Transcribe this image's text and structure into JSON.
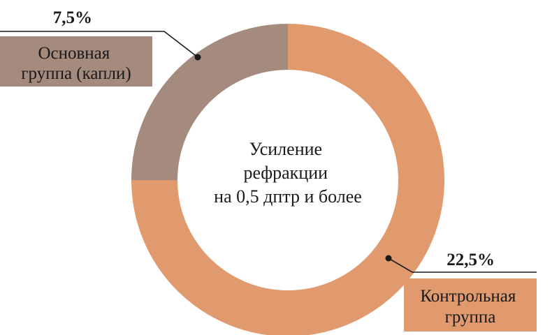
{
  "chart_data": {
    "type": "pie",
    "center_label": [
      "Усиление",
      "рефракции",
      "на 0,5 дптр и более"
    ],
    "series": [
      {
        "name": "Основная группа (капли)",
        "label_lines": [
          "Основная",
          "группа (капли)"
        ],
        "value": 7.5,
        "value_label": "7,5%",
        "color": "#a58a7e"
      },
      {
        "name": "Контрольная группа",
        "label_lines": [
          "Контрольная",
          "группа"
        ],
        "value": 22.5,
        "value_label": "22,5%",
        "color": "#e09a6e"
      }
    ],
    "legend": "callouts"
  }
}
